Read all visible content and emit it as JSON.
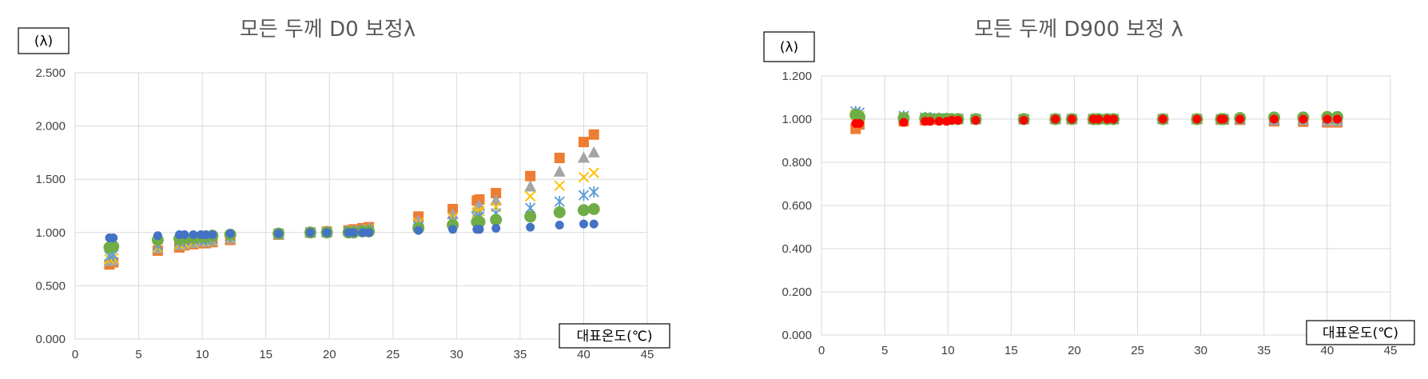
{
  "chart_data": [
    {
      "type": "scatter",
      "title": "모든 두께 D0 보정λ",
      "ylabel": "(λ)",
      "xlabel": "대표온도(℃)",
      "xlim": [
        0,
        45
      ],
      "ylim": [
        0,
        2.5
      ],
      "xticks": [
        "0",
        "5",
        "10",
        "15",
        "20",
        "25",
        "30",
        "35",
        "40",
        "45"
      ],
      "yticks": [
        "0.000",
        "0.500",
        "1.000",
        "1.500",
        "2.000",
        "2.500"
      ],
      "grid": true,
      "x": [
        2.7,
        3.0,
        6.5,
        8.2,
        8.6,
        9.3,
        9.9,
        10.3,
        10.8,
        12.2,
        16.0,
        18.5,
        19.8,
        21.5,
        21.9,
        22.6,
        23.1,
        27.0,
        29.7,
        31.6,
        31.8,
        33.1,
        35.8,
        38.1,
        40.0,
        40.8
      ],
      "series": [
        {
          "marker": "square",
          "color": "#ED7D31",
          "values": [
            0.7,
            0.72,
            0.83,
            0.86,
            0.88,
            0.89,
            0.9,
            0.9,
            0.91,
            0.93,
            0.98,
            1.0,
            1.01,
            1.02,
            1.03,
            1.04,
            1.05,
            1.15,
            1.22,
            1.3,
            1.31,
            1.37,
            1.53,
            1.7,
            1.85,
            1.92
          ]
        },
        {
          "marker": "triangle",
          "color": "#A5A5A5",
          "values": [
            0.73,
            0.74,
            0.85,
            0.88,
            0.89,
            0.9,
            0.91,
            0.91,
            0.92,
            0.94,
            0.98,
            1.0,
            1.01,
            1.02,
            1.02,
            1.03,
            1.04,
            1.11,
            1.17,
            1.23,
            1.25,
            1.3,
            1.43,
            1.57,
            1.7,
            1.75
          ]
        },
        {
          "marker": "x",
          "color": "#FFC000",
          "values": [
            0.75,
            0.76,
            0.86,
            0.89,
            0.9,
            0.91,
            0.92,
            0.92,
            0.93,
            0.95,
            0.99,
            1.0,
            1.01,
            1.01,
            1.02,
            1.02,
            1.03,
            1.09,
            1.14,
            1.19,
            1.2,
            1.24,
            1.34,
            1.44,
            1.52,
            1.56
          ]
        },
        {
          "marker": "star",
          "color": "#5B9BD5",
          "values": [
            0.78,
            0.79,
            0.88,
            0.91,
            0.92,
            0.93,
            0.93,
            0.93,
            0.94,
            0.96,
            0.99,
            1.0,
            1.0,
            1.01,
            1.01,
            1.02,
            1.02,
            1.06,
            1.1,
            1.14,
            1.15,
            1.18,
            1.23,
            1.29,
            1.35,
            1.38
          ]
        },
        {
          "marker": "circle-lg",
          "color": "#70AD47",
          "values": [
            0.86,
            0.87,
            0.93,
            0.94,
            0.95,
            0.95,
            0.96,
            0.96,
            0.97,
            0.98,
            0.99,
            1.0,
            1.0,
            1.0,
            1.0,
            1.01,
            1.01,
            1.04,
            1.07,
            1.1,
            1.1,
            1.12,
            1.15,
            1.19,
            1.21,
            1.22
          ]
        },
        {
          "marker": "circle",
          "color": "#4472C4",
          "values": [
            0.95,
            0.95,
            0.97,
            0.98,
            0.98,
            0.98,
            0.98,
            0.98,
            0.98,
            0.99,
            0.99,
            1.0,
            1.0,
            1.0,
            1.0,
            1.0,
            1.0,
            1.02,
            1.03,
            1.03,
            1.03,
            1.04,
            1.05,
            1.07,
            1.08,
            1.08
          ]
        }
      ]
    },
    {
      "type": "scatter",
      "title": "모든 두께 D900 보정 λ",
      "ylabel": "(λ)",
      "xlabel": "대표온도(℃)",
      "xlim": [
        0,
        45
      ],
      "ylim": [
        0,
        1.2
      ],
      "xticks": [
        "0",
        "5",
        "10",
        "15",
        "20",
        "25",
        "30",
        "35",
        "40",
        "45"
      ],
      "yticks": [
        "0.000",
        "0.200",
        "0.400",
        "0.600",
        "0.800",
        "1.000",
        "1.200"
      ],
      "grid": true,
      "x": [
        2.7,
        3.0,
        6.5,
        8.2,
        8.6,
        9.3,
        9.9,
        10.3,
        10.8,
        12.2,
        16.0,
        18.5,
        19.8,
        21.5,
        21.9,
        22.6,
        23.1,
        27.0,
        29.7,
        31.6,
        31.8,
        33.1,
        35.8,
        38.1,
        40.0,
        40.8
      ],
      "series": [
        {
          "marker": "square",
          "color": "#ED7D31",
          "values": [
            0.955,
            0.975,
            0.99,
            0.995,
            0.998,
            0.999,
            0.999,
            1.0,
            1.0,
            1.0,
            1.0,
            1.0,
            1.0,
            1.0,
            1.0,
            1.0,
            1.0,
            1.0,
            1.0,
            0.998,
            0.998,
            0.997,
            0.99,
            0.988,
            0.985,
            0.985
          ]
        },
        {
          "marker": "triangle",
          "color": "#A5A5A5",
          "values": [
            1.03,
            1.02,
            1.01,
            1.005,
            1.003,
            1.002,
            1.001,
            1.0,
            1.0,
            1.0,
            1.0,
            1.0,
            1.0,
            1.0,
            1.0,
            1.0,
            1.0,
            1.0,
            1.0,
            1.0,
            1.0,
            1.0,
            0.995,
            0.995,
            0.99,
            0.99
          ]
        },
        {
          "marker": "x",
          "color": "#FFC000",
          "values": [
            1.02,
            1.015,
            1.008,
            1.004,
            1.003,
            1.002,
            1.001,
            1.0,
            1.0,
            1.0,
            1.0,
            1.0,
            1.0,
            1.0,
            1.0,
            1.0,
            1.0,
            1.0,
            1.0,
            1.0,
            1.0,
            1.0,
            1.0,
            0.998,
            0.997,
            0.997
          ]
        },
        {
          "marker": "star",
          "color": "#5B9BD5",
          "values": [
            1.035,
            1.03,
            1.015,
            1.008,
            1.006,
            1.004,
            1.003,
            1.002,
            1.002,
            1.001,
            1.0,
            1.0,
            1.0,
            1.0,
            1.0,
            1.0,
            1.0,
            1.0,
            1.0,
            1.0,
            1.0,
            1.0,
            1.0,
            1.0,
            1.0,
            1.0
          ]
        },
        {
          "marker": "circle-lg",
          "color": "#70AD47",
          "values": [
            1.02,
            1.01,
            1.005,
            1.003,
            1.002,
            1.001,
            1.001,
            1.0,
            1.0,
            1.0,
            1.0,
            1.0,
            1.0,
            1.0,
            1.0,
            1.0,
            1.0,
            1.0,
            1.0,
            1.0,
            1.0,
            1.005,
            1.008,
            1.008,
            1.01,
            1.01
          ]
        },
        {
          "marker": "circle",
          "color": "#FF0000",
          "values": [
            0.98,
            0.98,
            0.985,
            0.99,
            0.99,
            0.99,
            0.99,
            0.995,
            0.995,
            0.995,
            0.995,
            1.0,
            1.0,
            1.0,
            1.0,
            1.0,
            1.0,
            1.0,
            1.0,
            1.0,
            1.0,
            1.0,
            1.0,
            1.0,
            1.0,
            1.0
          ]
        }
      ]
    }
  ]
}
